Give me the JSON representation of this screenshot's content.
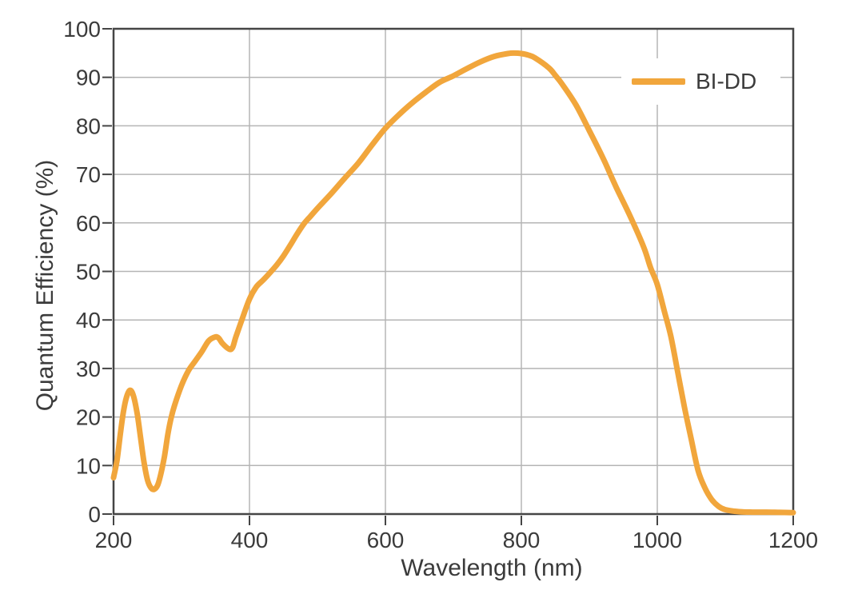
{
  "figure": {
    "background": "#ffffff",
    "colors": {
      "curve": "#F1A63C",
      "grid": "#b5b5b5",
      "frame": "#454545",
      "text": "#3b3b3b"
    }
  },
  "legend": {
    "label": "BI-DD"
  },
  "chart_data": {
    "type": "line",
    "title": "",
    "xlabel": "Wavelength (nm)",
    "ylabel": "Quantum Efficiency (%)",
    "xlim": [
      200,
      1200
    ],
    "ylim": [
      0,
      100
    ],
    "x_ticks": [
      200,
      400,
      600,
      800,
      1000,
      1200
    ],
    "y_ticks": [
      0,
      10,
      20,
      30,
      40,
      50,
      60,
      70,
      80,
      90,
      100
    ],
    "grid": true,
    "legend_position": "top-right",
    "series": [
      {
        "name": "BI-DD",
        "color": "#F1A63C",
        "x": [
          200,
          205,
          210,
          215,
          220,
          225,
          230,
          235,
          240,
          245,
          250,
          255,
          260,
          265,
          270,
          275,
          280,
          285,
          290,
          300,
          310,
          320,
          330,
          340,
          350,
          355,
          360,
          370,
          375,
          380,
          390,
          400,
          410,
          420,
          430,
          440,
          450,
          460,
          470,
          480,
          490,
          500,
          520,
          540,
          560,
          580,
          600,
          620,
          640,
          660,
          680,
          700,
          720,
          740,
          760,
          780,
          790,
          800,
          810,
          820,
          840,
          850,
          860,
          880,
          900,
          920,
          930,
          940,
          960,
          980,
          990,
          1000,
          1010,
          1020,
          1030,
          1040,
          1050,
          1060,
          1070,
          1080,
          1090,
          1100,
          1120,
          1140,
          1160,
          1180,
          1200
        ],
        "y": [
          7.5,
          11,
          16.5,
          21.5,
          24.5,
          25.5,
          24,
          20.5,
          15.5,
          10.5,
          7,
          5.4,
          5.1,
          6,
          8.5,
          12,
          16.5,
          20,
          22.5,
          26.5,
          29.5,
          31.5,
          33.5,
          35.7,
          36.5,
          36.2,
          35.2,
          34,
          34.3,
          36.5,
          40.5,
          44.3,
          46.8,
          48.2,
          49.7,
          51.3,
          53.2,
          55.4,
          57.7,
          59.8,
          61.4,
          63,
          66,
          69.2,
          72.3,
          76,
          79.5,
          82.3,
          84.8,
          87,
          89,
          90.3,
          91.8,
          93.2,
          94.3,
          94.9,
          95,
          94.9,
          94.6,
          94,
          92,
          90.4,
          88.6,
          84.4,
          79,
          73.4,
          70.3,
          67.2,
          61.4,
          55,
          50.8,
          47.3,
          42,
          36.6,
          29.3,
          22,
          15.4,
          9,
          5.4,
          3,
          1.6,
          0.9,
          0.5,
          0.4,
          0.4,
          0.35,
          0.3
        ]
      }
    ]
  }
}
